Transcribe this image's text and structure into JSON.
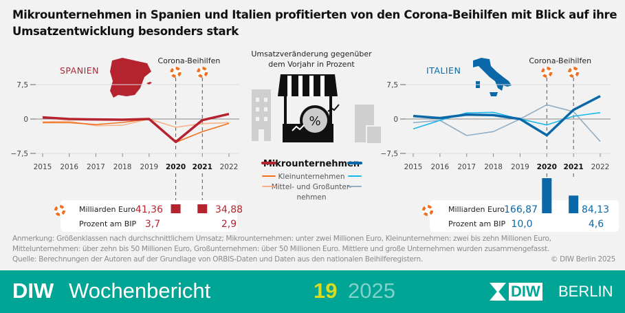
{
  "title_line1": "Mikrounternehmen in Spanien und Italien profitierten von den Corona-Beihilfen mit Blick auf ihre",
  "title_line2": "Umsatzentwicklung besonders stark",
  "center": {
    "subtitle_line1": "Umsatzveränderung gegenüber",
    "subtitle_line2": "dem Vorjahr in Prozent",
    "legend": [
      "Mikrounternehmen",
      "Kleinunternehmen",
      "Mittel- und Großunter-",
      "nehmen"
    ]
  },
  "aid_label": "Corona-Beihilfen",
  "info_labels": {
    "billion": "Milliarden Euro",
    "gdp": "Prozent am BIP"
  },
  "chart_data": [
    {
      "type": "line",
      "title": "SPANIEN",
      "x": [
        2015,
        2016,
        2017,
        2018,
        2019,
        2020,
        2021,
        2022
      ],
      "x_ticks": [
        "2015",
        "2016",
        "2017",
        "2018",
        "2019",
        "2020",
        "2021",
        "2022"
      ],
      "highlight_years": [
        "2020",
        "2021"
      ],
      "y_ticks": [
        "7,5",
        "0",
        "−7,5"
      ],
      "ylim": [
        -7.5,
        7.5
      ],
      "series": [
        {
          "name": "Mikrounternehmen",
          "color": "#b5232f",
          "values": [
            0.35,
            0.0,
            -0.1,
            -0.15,
            0.0,
            -5.0,
            -0.25,
            1.1
          ]
        },
        {
          "name": "Kleinunternehmen",
          "color": "#f07020",
          "values": [
            -0.8,
            -0.8,
            -1.2,
            -0.75,
            0.0,
            -5.1,
            -2.75,
            -0.95
          ]
        },
        {
          "name": "Mittel- und Großunternehmen",
          "color": "#f8b088",
          "values": [
            -0.6,
            -0.5,
            -1.45,
            -1.35,
            0.0,
            -1.8,
            -1.0,
            -0.8
          ]
        }
      ],
      "aid": {
        "years": [
          "2020",
          "2021"
        ],
        "billion_euro": [
          "41,36",
          "34,88"
        ],
        "billion_values": [
          41.36,
          34.88
        ],
        "percent_gdp": [
          "3,7",
          "2,9"
        ],
        "color": "#b5232f"
      }
    },
    {
      "type": "line",
      "title": "ITALIEN",
      "x": [
        2015,
        2016,
        2017,
        2018,
        2019,
        2020,
        2021,
        2022
      ],
      "x_ticks": [
        "2015",
        "2016",
        "2017",
        "2018",
        "2019",
        "2020",
        "2021",
        "2022"
      ],
      "highlight_years": [
        "2020",
        "2021"
      ],
      "y_ticks": [
        "7,5",
        "0",
        "−7,5"
      ],
      "ylim": [
        -7.5,
        7.5
      ],
      "series": [
        {
          "name": "Mikrounternehmen",
          "color": "#0a68a8",
          "values": [
            0.65,
            0.2,
            0.95,
            0.85,
            0.0,
            -3.55,
            2.0,
            5.0
          ]
        },
        {
          "name": "Kleinunternehmen",
          "color": "#1ab8ec",
          "values": [
            -2.15,
            -0.3,
            1.35,
            1.45,
            0.0,
            -1.3,
            0.6,
            1.4
          ]
        },
        {
          "name": "Mittel- und Großunternehmen",
          "color": "#92aec4",
          "values": [
            -0.8,
            -0.3,
            -3.6,
            -2.75,
            0.0,
            3.1,
            1.6,
            -4.9
          ]
        }
      ],
      "aid": {
        "years": [
          "2020",
          "2021"
        ],
        "billion_euro": [
          "166,87",
          "84,13"
        ],
        "billion_values": [
          166.87,
          84.13
        ],
        "percent_gdp": [
          "10,0",
          "4,6"
        ],
        "color": "#0a68a8"
      }
    }
  ],
  "notes": [
    "Anmerkung:  Größenklassen nach durchschnittlichem Umsatz; Mikrounternehmen: unter zwei Millionen Euro, Kleinunternehmen: zwei bis zehn Millionen Euro,",
    "Mittelunternehmen: über zehn bis 50 Millionen Euro, Großunternehmen: über 50 Millionen Euro. Mittlere und große Unternehmen wurden zusammengefasst.",
    "Quelle: Berechnungen der Autoren auf der Grundlage von ORBIS-Daten und Daten aus den nationalen Beihilferegistern."
  ],
  "copyright": "© DIW Berlin 2025",
  "footer": {
    "brand": "DIW",
    "publication": "Wochenbericht",
    "issue": "19",
    "year": "2025",
    "logo_a": "DIW",
    "logo_b": "BERLIN",
    "bg": "#00a595",
    "issue_color": "#d8dc1c"
  }
}
